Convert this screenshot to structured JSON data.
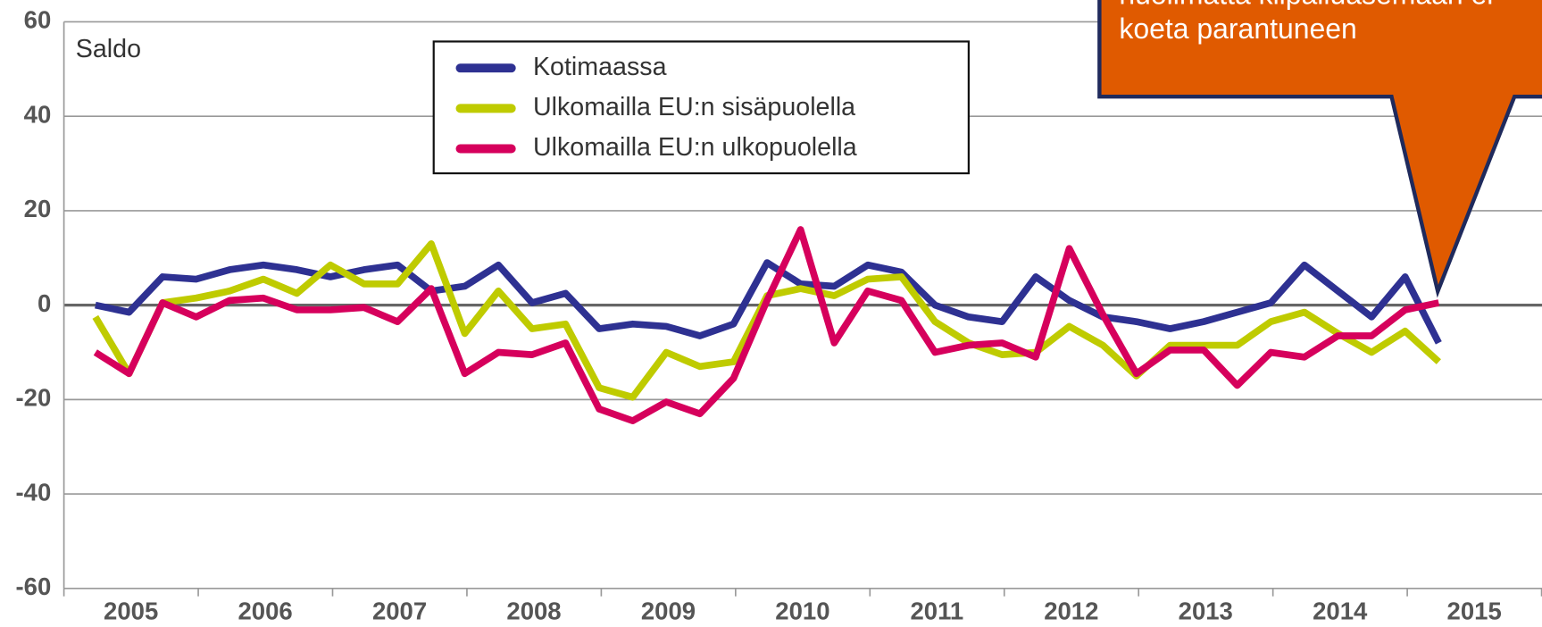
{
  "chart_data": {
    "type": "line",
    "ylabel": "Saldo",
    "annotation": [
      "huolimatta kilpailuasemaan ei",
      "koeta parantuneen"
    ],
    "categories": [
      null,
      "2005",
      null,
      null,
      null,
      "2006",
      null,
      null,
      null,
      "2007",
      null,
      null,
      null,
      "2008",
      null,
      null,
      null,
      "2009",
      null,
      null,
      null,
      "2010",
      null,
      null,
      null,
      "2011",
      null,
      null,
      null,
      "2012",
      null,
      null,
      null,
      "2013",
      null,
      null,
      null,
      "2014",
      null,
      null,
      null,
      "2015",
      null,
      null
    ],
    "series": [
      {
        "name": "Kotimaassa",
        "color": "#2e3192",
        "values": [
          0,
          -1.5,
          6,
          5.5,
          7.5,
          8.5,
          7.5,
          6,
          7.5,
          8.5,
          3,
          4,
          8.5,
          0.5,
          2.5,
          -5,
          -4,
          -4.5,
          -6.5,
          -4,
          9,
          4.5,
          4,
          8.5,
          7,
          0,
          -2.5,
          -3.5,
          6,
          1,
          -2.5,
          -3.5,
          -5,
          -3.5,
          -1.5,
          0.5,
          8.5,
          3,
          -2.5,
          6,
          -8,
          null,
          null,
          null
        ]
      },
      {
        "name": "Ulkomailla EU:n sisäpuolella",
        "color": "#bfcb00",
        "values": [
          -2.5,
          -14.5,
          0.5,
          1.5,
          3,
          5.5,
          2.5,
          8.5,
          4.5,
          4.5,
          13,
          -6,
          3,
          -5,
          -4,
          -17.5,
          -19.5,
          -10,
          -13,
          -12,
          2,
          3.5,
          2,
          5.5,
          6,
          -3.5,
          -8,
          -10.5,
          -10,
          -4.5,
          -8.5,
          -15,
          -8.5,
          -8.5,
          -8.5,
          -3.5,
          -1.5,
          -6,
          -10,
          -5.5,
          -12,
          null,
          null,
          null
        ]
      },
      {
        "name": "Ulkomailla EU:n ulkopuolella",
        "color": "#d6005c",
        "values": [
          -10,
          -14.5,
          0.5,
          -2.5,
          1,
          1.5,
          -1,
          -1,
          -0.5,
          -3.5,
          3.5,
          -14.5,
          -10,
          -10.5,
          -8,
          -22,
          -24.5,
          -20.5,
          -23,
          -15.5,
          1,
          16,
          -8,
          3,
          1,
          -10,
          -8.5,
          -8,
          -11,
          12,
          -2,
          -14.5,
          -9.5,
          -9.5,
          -17,
          -10,
          -11,
          -6.5,
          -6.5,
          -1,
          0.5,
          null,
          null,
          null
        ]
      }
    ],
    "ylim": [
      -60,
      60
    ],
    "yticks": [
      -60,
      -40,
      -20,
      0,
      20,
      40,
      60
    ],
    "grid": true
  }
}
